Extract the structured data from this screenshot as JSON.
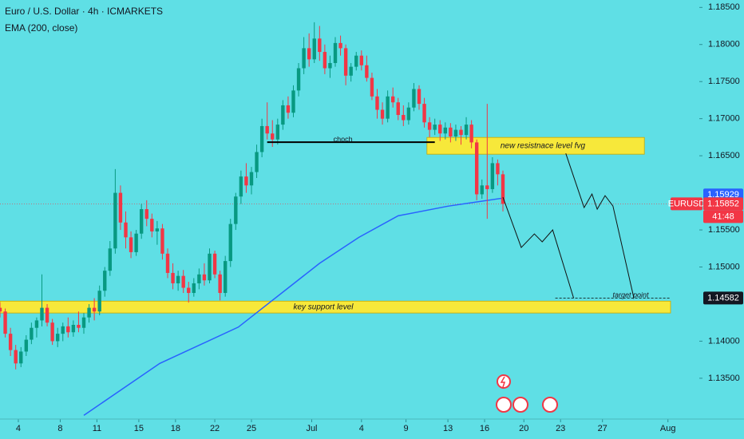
{
  "chart_data": {
    "type": "candlestick",
    "title": "Euro / U.S. Dollar · 4h · ICMARKETS",
    "symbol": "EURUSD",
    "countdown": "41:48",
    "background": "#5fdfe5",
    "up_color": "#089981",
    "down_color": "#f23645",
    "xlim": [
      0,
      256
    ],
    "ylim": [
      1.1295,
      1.186
    ],
    "xticks": [
      {
        "value": 7,
        "label": "4"
      },
      {
        "value": 23,
        "label": "8"
      },
      {
        "value": 37,
        "label": "11"
      },
      {
        "value": 53,
        "label": "15"
      },
      {
        "value": 67,
        "label": "18"
      },
      {
        "value": 82,
        "label": "22"
      },
      {
        "value": 96,
        "label": "25"
      },
      {
        "value": 119,
        "label": "Jul"
      },
      {
        "value": 138,
        "label": "4"
      },
      {
        "value": 155,
        "label": "9"
      },
      {
        "value": 171,
        "label": "13"
      },
      {
        "value": 185,
        "label": "16"
      },
      {
        "value": 200,
        "label": "20"
      },
      {
        "value": 214,
        "label": "23"
      },
      {
        "value": 230,
        "label": "27"
      },
      {
        "value": 255,
        "label": "Aug"
      }
    ],
    "yticks": [
      {
        "value": 1.185,
        "label": "1.18500"
      },
      {
        "value": 1.18,
        "label": "1.18000"
      },
      {
        "value": 1.175,
        "label": "1.17500"
      },
      {
        "value": 1.17,
        "label": "1.17000"
      },
      {
        "value": 1.165,
        "label": "1.16500"
      },
      {
        "value": 1.155,
        "label": "1.15500"
      },
      {
        "value": 1.15,
        "label": "1.15000"
      },
      {
        "value": 1.14,
        "label": "1.14000"
      },
      {
        "value": 1.135,
        "label": "1.13500"
      }
    ],
    "x": [
      0,
      2,
      4,
      6,
      8,
      10,
      12,
      14,
      16,
      18,
      20,
      22,
      24,
      26,
      28,
      30,
      32,
      34,
      36,
      38,
      40,
      42,
      44,
      46,
      48,
      50,
      52,
      54,
      56,
      58,
      60,
      62,
      64,
      66,
      68,
      70,
      72,
      74,
      76,
      78,
      80,
      82,
      84,
      86,
      88,
      90,
      92,
      94,
      96,
      98,
      100,
      102,
      104,
      106,
      108,
      110,
      112,
      114,
      116,
      118,
      120,
      122,
      124,
      126,
      128,
      130,
      132,
      134,
      136,
      138,
      140,
      142,
      144,
      146,
      148,
      150,
      152,
      154,
      156,
      158,
      160,
      162,
      164,
      166,
      168,
      170,
      172,
      174,
      176,
      178,
      180,
      182,
      184,
      186,
      188,
      190,
      192
    ],
    "open": [
      1.1445,
      1.144,
      1.141,
      1.1388,
      1.137,
      1.1386,
      1.1402,
      1.1418,
      1.1428,
      1.1445,
      1.1425,
      1.14,
      1.141,
      1.142,
      1.1412,
      1.1422,
      1.1418,
      1.1432,
      1.1445,
      1.144,
      1.1468,
      1.1495,
      1.1525,
      1.16,
      1.156,
      1.154,
      1.152,
      1.1545,
      1.1578,
      1.1565,
      1.1548,
      1.1552,
      1.1518,
      1.1492,
      1.1478,
      1.1488,
      1.1472,
      1.1465,
      1.1478,
      1.149,
      1.1482,
      1.1518,
      1.149,
      1.1465,
      1.1508,
      1.1558,
      1.1595,
      1.1622,
      1.161,
      1.1628,
      1.1655,
      1.169,
      1.168,
      1.1672,
      1.1692,
      1.1718,
      1.1708,
      1.1738,
      1.1768,
      1.1795,
      1.178,
      1.1808,
      1.179,
      1.1768,
      1.1775,
      1.1802,
      1.1795,
      1.1758,
      1.177,
      1.1785,
      1.1772,
      1.1755,
      1.173,
      1.1712,
      1.17,
      1.173,
      1.1722,
      1.1705,
      1.1698,
      1.1715,
      1.174,
      1.172,
      1.1695,
      1.1685,
      1.1692,
      1.168,
      1.1688,
      1.1676,
      1.1685,
      1.1678,
      1.1692,
      1.1668,
      1.1598,
      1.161,
      1.1605,
      1.164,
      1.1625
    ],
    "high": [
      1.1452,
      1.1444,
      1.1418,
      1.1395,
      1.1392,
      1.1408,
      1.1425,
      1.1432,
      1.149,
      1.145,
      1.143,
      1.1418,
      1.1425,
      1.1432,
      1.1428,
      1.144,
      1.1438,
      1.145,
      1.1458,
      1.1475,
      1.15,
      1.1535,
      1.1632,
      1.161,
      1.1575,
      1.1548,
      1.155,
      1.1585,
      1.159,
      1.1572,
      1.1562,
      1.1558,
      1.1525,
      1.1505,
      1.1495,
      1.1496,
      1.148,
      1.1485,
      1.1498,
      1.1505,
      1.1525,
      1.1522,
      1.1495,
      1.1515,
      1.1565,
      1.16,
      1.163,
      1.164,
      1.1635,
      1.1665,
      1.17,
      1.1722,
      1.1698,
      1.17,
      1.1725,
      1.173,
      1.1745,
      1.1775,
      1.181,
      1.1815,
      1.183,
      1.1825,
      1.18,
      1.1785,
      1.181,
      1.1812,
      1.18,
      1.1775,
      1.179,
      1.1792,
      1.1785,
      1.1762,
      1.174,
      1.1722,
      1.1738,
      1.1742,
      1.1728,
      1.1718,
      1.1722,
      1.1748,
      1.1745,
      1.1728,
      1.1702,
      1.17,
      1.1698,
      1.1695,
      1.1694,
      1.1692,
      1.169,
      1.1702,
      1.1698,
      1.1672,
      1.1618,
      1.172,
      1.1648,
      1.1645,
      1.163
    ],
    "low": [
      1.1432,
      1.1405,
      1.138,
      1.1362,
      1.1365,
      1.138,
      1.1396,
      1.1405,
      1.142,
      1.142,
      1.1395,
      1.1392,
      1.14,
      1.1405,
      1.1406,
      1.1412,
      1.141,
      1.1425,
      1.1428,
      1.1435,
      1.146,
      1.1488,
      1.1518,
      1.155,
      1.1525,
      1.1512,
      1.1515,
      1.1538,
      1.1555,
      1.154,
      1.153,
      1.151,
      1.1485,
      1.147,
      1.1468,
      1.1465,
      1.1452,
      1.146,
      1.147,
      1.1475,
      1.1478,
      1.1485,
      1.1455,
      1.146,
      1.15,
      1.155,
      1.1585,
      1.16,
      1.1598,
      1.162,
      1.1648,
      1.1672,
      1.1662,
      1.1665,
      1.1685,
      1.17,
      1.1702,
      1.173,
      1.176,
      1.177,
      1.1775,
      1.1778,
      1.176,
      1.1755,
      1.177,
      1.1785,
      1.1745,
      1.175,
      1.1765,
      1.1765,
      1.175,
      1.1725,
      1.17,
      1.1692,
      1.1695,
      1.1715,
      1.1698,
      1.169,
      1.1692,
      1.171,
      1.1712,
      1.1688,
      1.1675,
      1.1678,
      1.167,
      1.1672,
      1.1668,
      1.167,
      1.1665,
      1.1672,
      1.166,
      1.159,
      1.1592,
      1.1565,
      1.16,
      1.161,
      1.1575
    ],
    "close": [
      1.144,
      1.141,
      1.1388,
      1.137,
      1.1386,
      1.1402,
      1.1418,
      1.1428,
      1.1445,
      1.1425,
      1.14,
      1.141,
      1.142,
      1.1412,
      1.1422,
      1.1418,
      1.1432,
      1.1445,
      1.144,
      1.1468,
      1.1495,
      1.1525,
      1.16,
      1.156,
      1.154,
      1.152,
      1.1545,
      1.1578,
      1.1565,
      1.1548,
      1.1552,
      1.1518,
      1.1492,
      1.1478,
      1.1488,
      1.1472,
      1.1465,
      1.1478,
      1.149,
      1.1482,
      1.1518,
      1.149,
      1.1465,
      1.1508,
      1.1558,
      1.1595,
      1.1622,
      1.161,
      1.1628,
      1.1655,
      1.169,
      1.168,
      1.1672,
      1.1692,
      1.1718,
      1.1708,
      1.1738,
      1.1768,
      1.1795,
      1.178,
      1.1808,
      1.179,
      1.1768,
      1.1775,
      1.1802,
      1.1795,
      1.1758,
      1.177,
      1.1785,
      1.1772,
      1.1755,
      1.173,
      1.1712,
      1.17,
      1.173,
      1.1722,
      1.1705,
      1.1698,
      1.1715,
      1.174,
      1.172,
      1.1695,
      1.1685,
      1.1692,
      1.168,
      1.1688,
      1.1676,
      1.1685,
      1.1678,
      1.1692,
      1.1668,
      1.1598,
      1.161,
      1.1605,
      1.164,
      1.1625,
      1.15852
    ],
    "series": [
      {
        "name": "EMA (200, close)",
        "color": "#2962ff",
        "x": [
          32,
          61,
          91,
          122,
          137,
          152,
          171,
          192
        ],
        "values": [
          1.13,
          1.137,
          1.1419,
          1.1505,
          1.154,
          1.1569,
          1.1582,
          1.15929
        ]
      }
    ],
    "zones": [
      {
        "label": "key support level",
        "x": [
          0,
          256
        ],
        "y": [
          1.1438,
          1.1454
        ],
        "color": "#f7e83a"
      },
      {
        "label": "new resistnace level fvg",
        "x": [
          163,
          246
        ],
        "y": [
          1.16521,
          1.16747
        ],
        "color": "#f7e83a"
      }
    ],
    "levels": [
      {
        "label": "choch",
        "x": [
          102,
          166
        ],
        "y": 1.16683,
        "style": "solid"
      },
      {
        "label": "target point",
        "x": [
          212,
          256
        ],
        "y": 1.14582,
        "style": "dashed"
      }
    ],
    "projections": [
      {
        "x": [
          192,
          199,
          204,
          207,
          211,
          219
        ],
        "values": [
          1.15941,
          1.15263,
          1.15446,
          1.15339,
          1.155,
          1.1458
        ]
      },
      {
        "x": [
          216,
          223,
          226,
          228,
          231,
          234,
          242
        ],
        "values": [
          1.16532,
          1.15801,
          1.15984,
          1.1578,
          1.15962,
          1.15823,
          1.1458
        ]
      }
    ]
  }
}
